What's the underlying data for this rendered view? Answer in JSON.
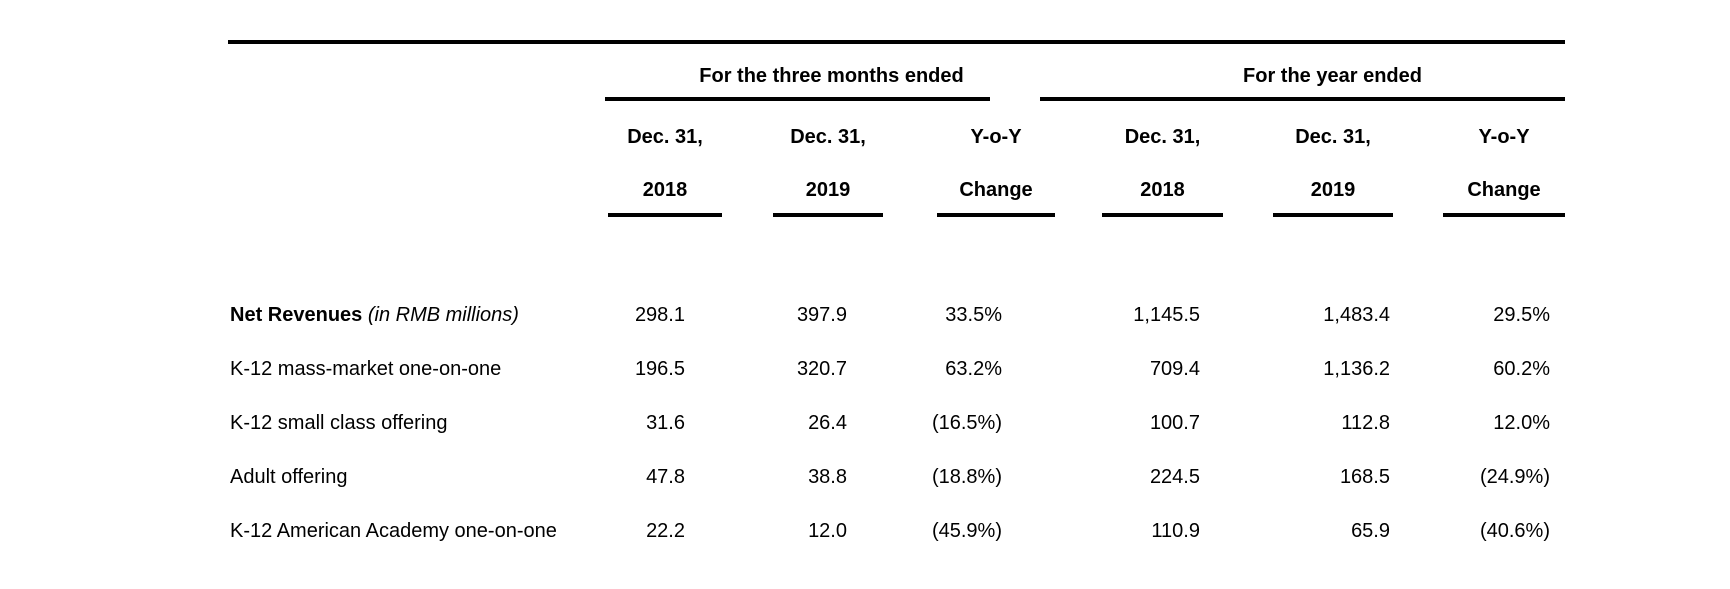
{
  "document": {
    "type": "financial-results-table",
    "colors": {
      "background": "#ffffff",
      "text": "#000000",
      "rule": "#000000"
    },
    "table": {
      "group_headers": [
        {
          "label": "For the three months ended"
        },
        {
          "label": "For the year ended"
        }
      ],
      "columns": [
        {
          "line1": "Dec. 31,",
          "line2": "2018"
        },
        {
          "line1": "Dec. 31,",
          "line2": "2019"
        },
        {
          "line1": "Y-o-Y",
          "line2": "Change"
        },
        {
          "line1": "Dec. 31,",
          "line2": "2018"
        },
        {
          "line1": "Dec. 31,",
          "line2": "2019"
        },
        {
          "line1": "Y-o-Y",
          "line2": "Change"
        }
      ],
      "rows": [
        {
          "label": "Net Revenues",
          "label_note": " (in RMB millions)",
          "values": [
            "298.1",
            "397.9",
            "33.5%",
            "1,145.5",
            "1,483.4",
            "29.5%"
          ]
        },
        {
          "label": "K-12 mass-market one-on-one",
          "label_note": "",
          "values": [
            "196.5",
            "320.7",
            "63.2%",
            "709.4",
            "1,136.2",
            "60.2%"
          ]
        },
        {
          "label": "K-12 small class offering",
          "label_note": "",
          "values": [
            "31.6",
            "26.4",
            "(16.5%)",
            "100.7",
            "112.8",
            "12.0%"
          ]
        },
        {
          "label": "Adult offering",
          "label_note": "",
          "values": [
            "47.8",
            "38.8",
            "(18.8%)",
            "224.5",
            "168.5",
            "(24.9%)"
          ]
        },
        {
          "label": "K-12 American Academy one-on-one",
          "label_note": "",
          "values": [
            "22.2",
            "12.0",
            "(45.9%)",
            "110.9",
            "65.9",
            "(40.6%)"
          ]
        }
      ]
    }
  }
}
